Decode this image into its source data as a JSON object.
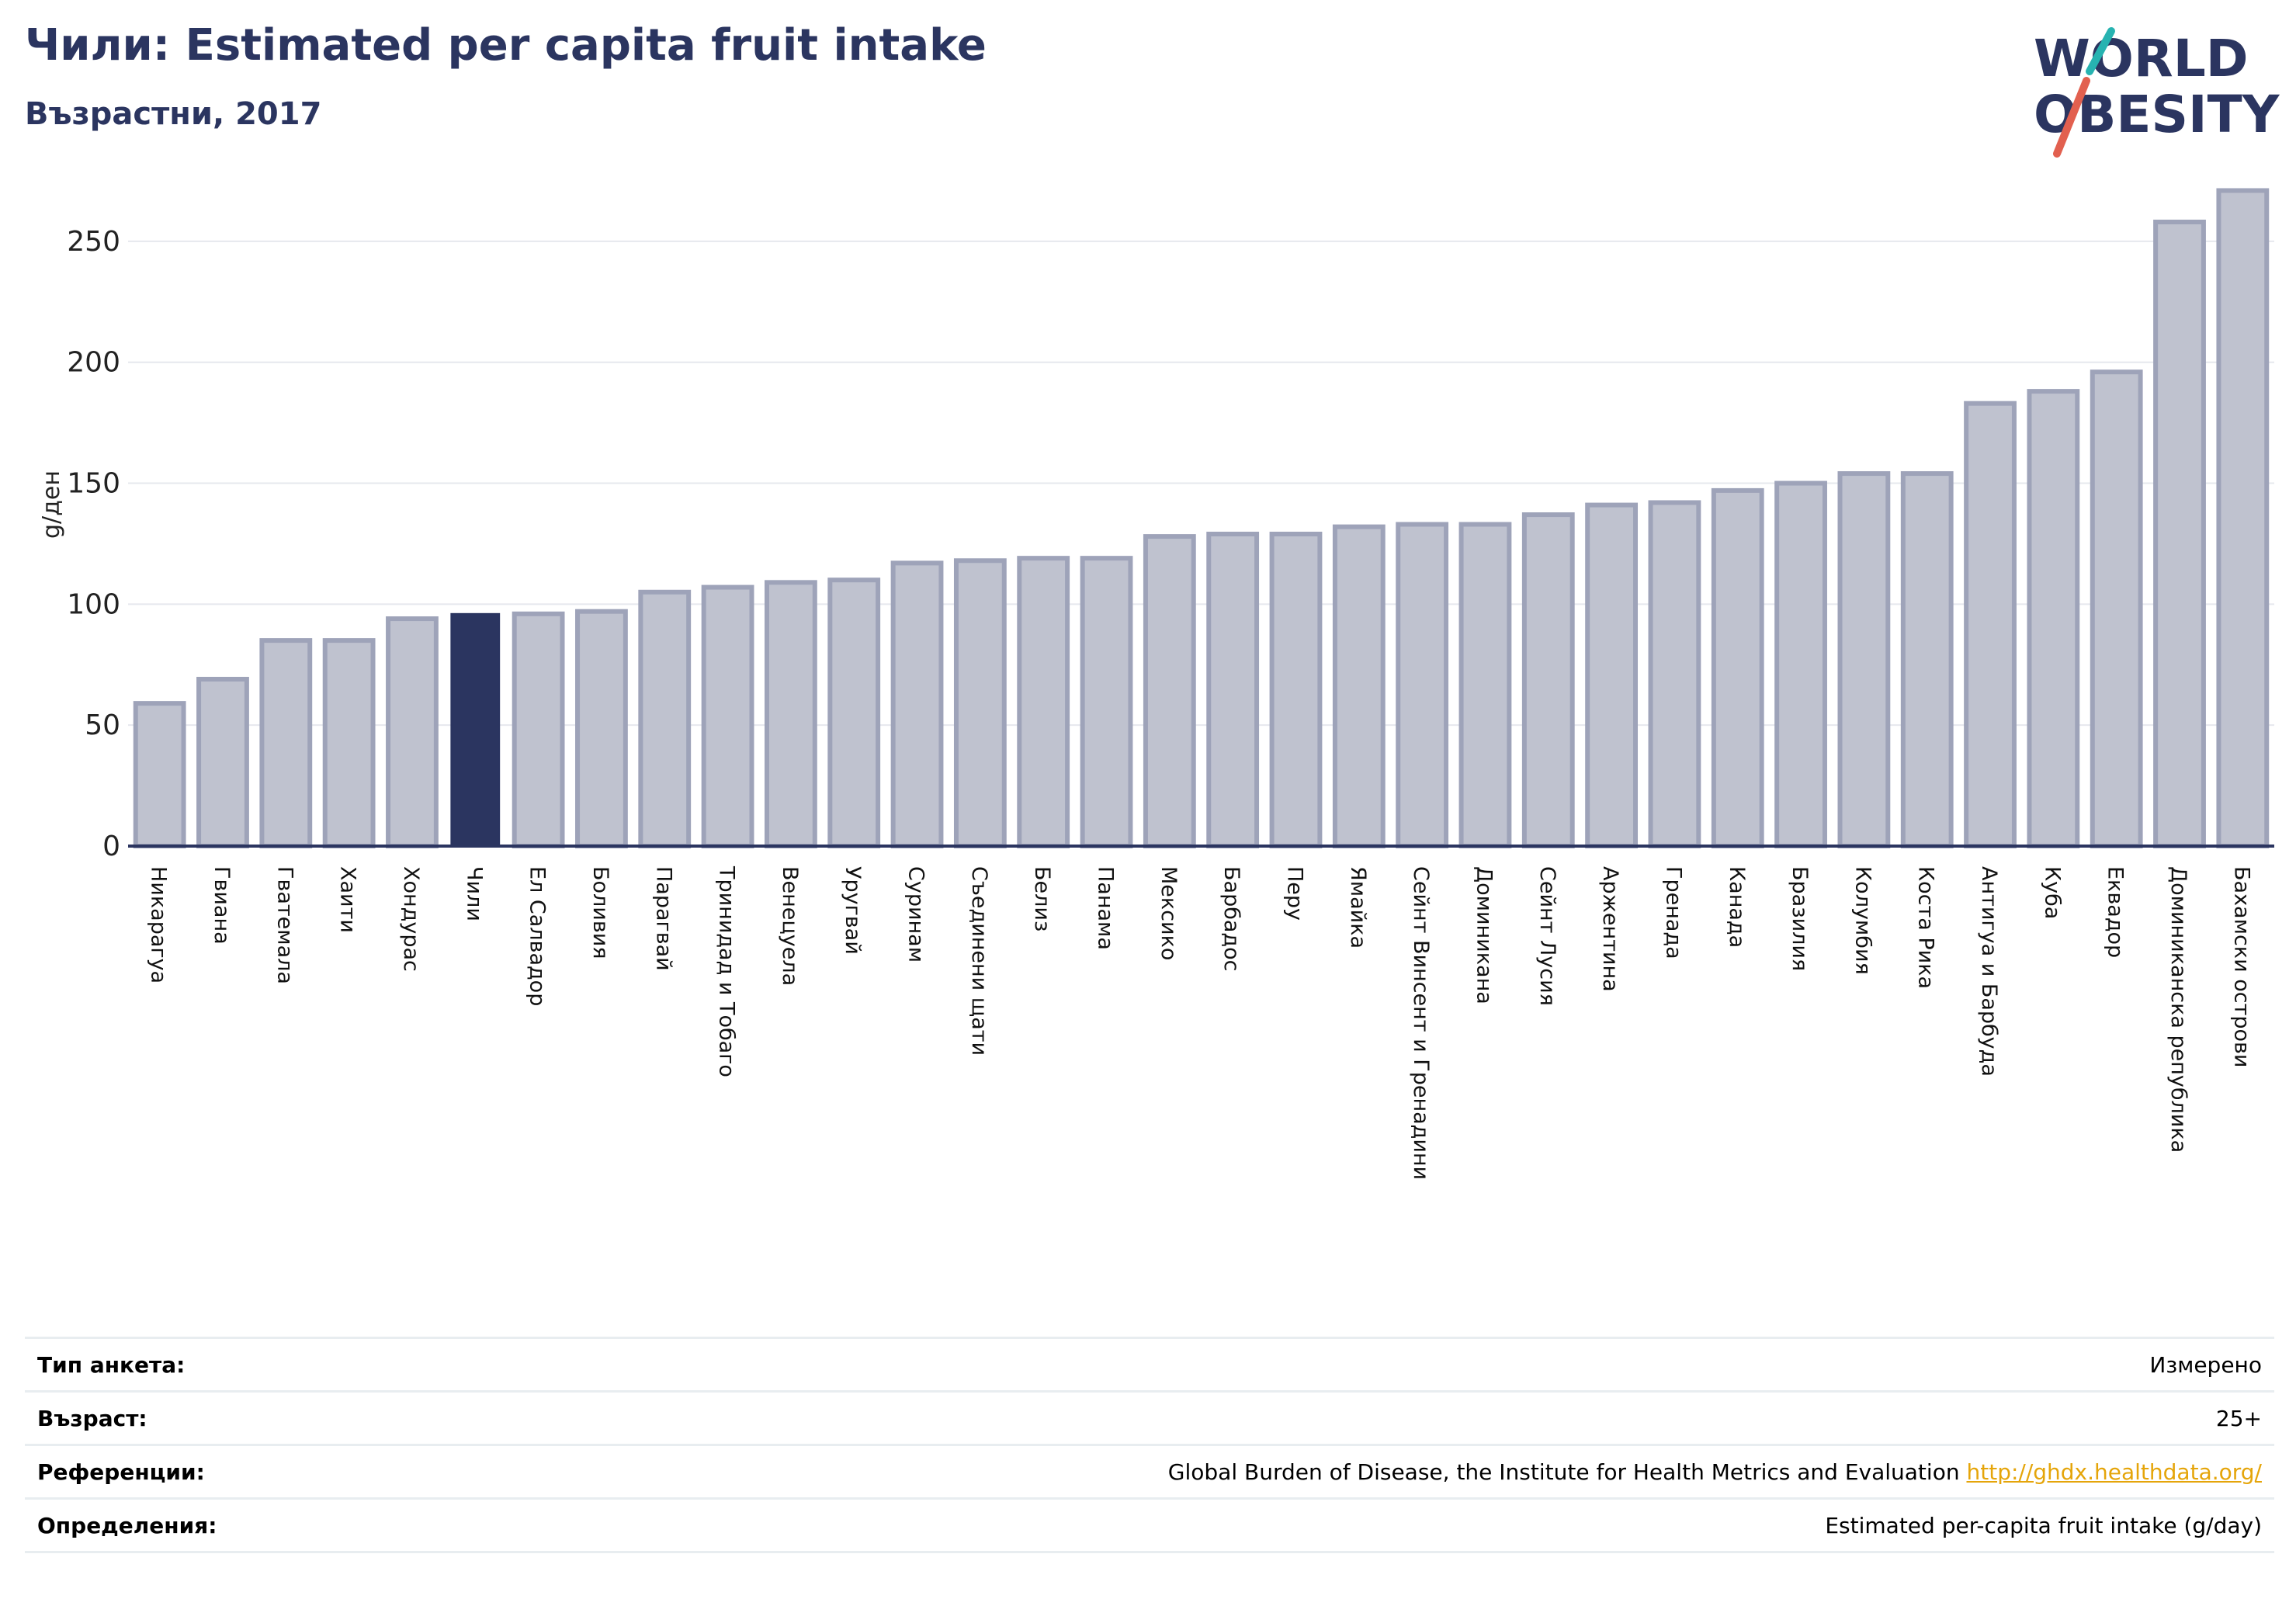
{
  "header": {
    "title": "Чили: Estimated per capita fruit intake",
    "subtitle": "Възрастни, 2017"
  },
  "logo": {
    "line1": "WORLD",
    "line2": "OBESITY",
    "colors": {
      "text": "#2b3560",
      "teal": "#27b3b1",
      "red": "#e2604f"
    }
  },
  "chart_data": {
    "type": "bar",
    "ylabel": "g/ден",
    "ylim": [
      0,
      275
    ],
    "yticks": [
      0,
      50,
      100,
      150,
      200,
      250
    ],
    "grid": true,
    "highlight": "Чили",
    "colors": {
      "bar_fill": "#bfc2cf",
      "bar_stroke": "#9ea3b9",
      "highlight": "#2b3560",
      "grid": "#e6e8ee",
      "axis": "#2b3560"
    },
    "categories": [
      "Никарагуа",
      "Гвиана",
      "Гватемала",
      "Хаити",
      "Хондурас",
      "Чили",
      "Ел Салвадор",
      "Боливия",
      "Парагвай",
      "Тринидад и Тобаго",
      "Венецуела",
      "Уругвай",
      "Суринам",
      "Съединени щати",
      "Белиз",
      "Панама",
      "Мексико",
      "Барбадос",
      "Перу",
      "Ямайка",
      "Сейнт Винсент и Гренадини",
      "Доминикана",
      "Сейнт Лусия",
      "Аржентина",
      "Гренада",
      "Канада",
      "Бразилия",
      "Колумбия",
      "Коста Рика",
      "Антигуа и Барбуда",
      "Куба",
      "Еквадор",
      "Доминиканска република",
      "Бахамски острови"
    ],
    "values": [
      59,
      69,
      85,
      85,
      94,
      96,
      96,
      97,
      105,
      107,
      109,
      110,
      117,
      118,
      119,
      119,
      128,
      129,
      129,
      132,
      133,
      133,
      137,
      141,
      142,
      147,
      150,
      154,
      154,
      183,
      188,
      196,
      258,
      271
    ]
  },
  "info": {
    "rows": [
      {
        "label": "Тип анкета:",
        "value": "Измерено"
      },
      {
        "label": "Възраст:",
        "value": "25+"
      },
      {
        "label": "Референции:",
        "value": "Global Burden of Disease, the Institute for Health Metrics and Evaluation",
        "link": "http://ghdx.healthdata.org/"
      },
      {
        "label": "Определения:",
        "value": "Estimated per-capita fruit intake (g/day)"
      }
    ]
  }
}
